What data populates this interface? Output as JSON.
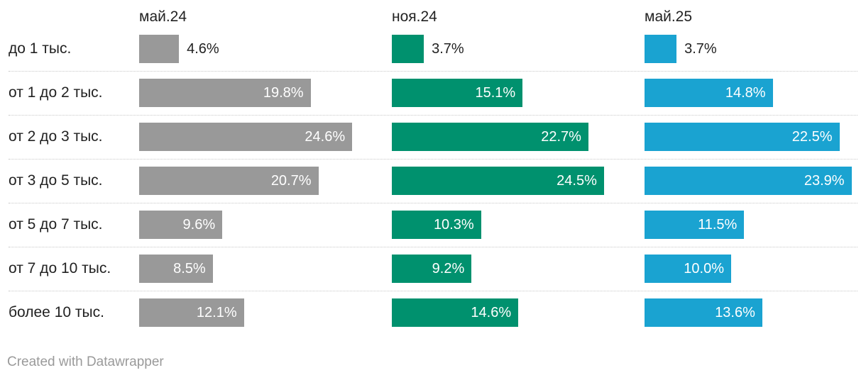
{
  "chart_data": {
    "type": "bar",
    "orientation": "horizontal",
    "layout": "split-bars",
    "categories": [
      "до 1 тыс.",
      "от 1 до 2 тыс.",
      "от 2 до 3 тыс.",
      "от 3 до 5 тыс.",
      "от 5 до 7 тыс.",
      "от 7 до 10 тыс.",
      "более 10 тыс."
    ],
    "series": [
      {
        "name": "май.24",
        "color": "#999999",
        "values": [
          4.6,
          19.8,
          24.6,
          20.7,
          9.6,
          8.5,
          12.1
        ]
      },
      {
        "name": "ноя.24",
        "color": "#00916e",
        "values": [
          3.7,
          15.1,
          22.7,
          24.5,
          10.3,
          9.2,
          14.6
        ]
      },
      {
        "name": "май.25",
        "color": "#1aa3d1",
        "values": [
          3.7,
          14.8,
          22.5,
          23.9,
          11.5,
          10.0,
          13.6
        ]
      }
    ],
    "value_suffix": "%",
    "value_decimals": 1,
    "grid": false,
    "legend": "column headers"
  },
  "footer": {
    "credit": "Created with Datawrapper"
  }
}
